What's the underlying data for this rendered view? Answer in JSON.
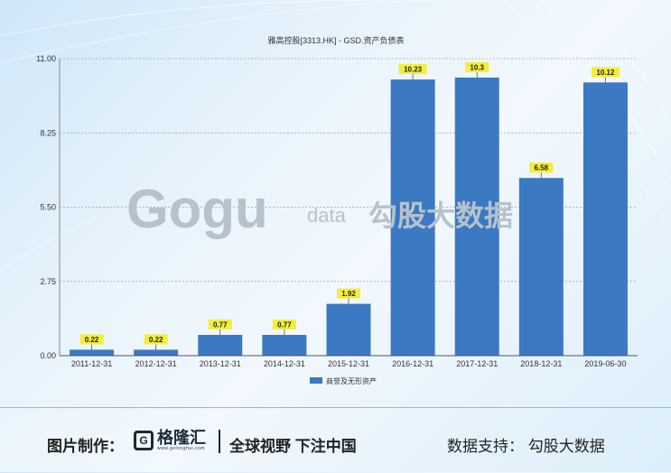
{
  "chart_data": {
    "type": "bar",
    "title": "雅高控股[3313.HK] - GSD.资产负债表",
    "categories": [
      "2011-12-31",
      "2012-12-31",
      "2013-12-31",
      "2014-12-31",
      "2015-12-31",
      "2016-12-31",
      "2017-12-31",
      "2018-12-31",
      "2019-06-30"
    ],
    "series": [
      {
        "name": "商誉及无形资产",
        "values": [
          0.22,
          0.22,
          0.77,
          0.77,
          1.92,
          10.23,
          10.3,
          6.58,
          10.12
        ],
        "color": "#3b79c2"
      }
    ],
    "data_labels": [
      "0.22",
      "0.22",
      "0.77",
      "0.77",
      "1.92",
      "10.23",
      "10.3",
      "6.58",
      "10.12"
    ],
    "yticks": [
      "0.00",
      "2.75",
      "5.50",
      "8.25",
      "11.00"
    ],
    "ylim": [
      0,
      11
    ],
    "grid": true,
    "legend_position": "bottom",
    "label_bg_color": "#f2ee3a",
    "bar_color": "#3b79c2"
  },
  "watermark": {
    "brand": "Gogu",
    "suffix": "data",
    "cn": "勾股大数据"
  },
  "footer": {
    "credit_label": "图片制作：",
    "logo_text": "格隆汇",
    "logo_url": "www.gelonghui.com",
    "slogan": "全球视野 下注中国",
    "support": "数据支持：  勾股大数据"
  }
}
